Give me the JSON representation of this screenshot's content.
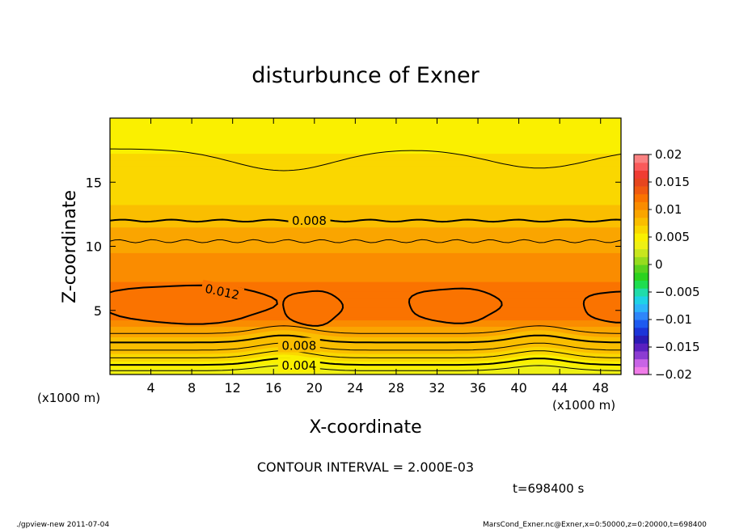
{
  "chart_data": {
    "type": "heatmap",
    "title": "disturbunce of Exner",
    "xlabel": "X-coordinate",
    "ylabel": "Z-coordinate",
    "x_unit_left": "(x1000 m)",
    "x_unit_right": "(x1000 m)",
    "xlim": [
      0,
      50
    ],
    "ylim": [
      0,
      20
    ],
    "x_ticks": [
      4,
      8,
      12,
      16,
      20,
      24,
      28,
      32,
      36,
      40,
      44,
      48
    ],
    "x_tick_labels": [
      "4",
      "8",
      "12",
      "16",
      "20",
      "24",
      "28",
      "32",
      "36",
      "40",
      "44",
      "48"
    ],
    "y_ticks": [
      5,
      10,
      15
    ],
    "y_tick_labels": [
      "5",
      "10",
      "15"
    ],
    "colorbar": {
      "range": [
        -0.02,
        0.02
      ],
      "tick_values": [
        0.02,
        0.015,
        0.01,
        0.005,
        0,
        -0.005,
        -0.01,
        -0.015,
        -0.02
      ],
      "tick_labels": [
        "0.02",
        "0.015",
        "0.01",
        "0.005",
        "0",
        "−0.005",
        "−0.01",
        "−0.015",
        "−0.02"
      ],
      "colors": [
        "#f07ce8",
        "#c864e6",
        "#8c3cd2",
        "#5a20c0",
        "#2a1ab4",
        "#1c34d8",
        "#1e5af0",
        "#2f86fa",
        "#2cb4fa",
        "#1ed2e6",
        "#20dcaa",
        "#1ede50",
        "#2cd21e",
        "#5ad21e",
        "#96dc1e",
        "#c8e61e",
        "#eef014",
        "#faf000",
        "#fad700",
        "#fabe00",
        "#faa500",
        "#fa8c00",
        "#fa7300",
        "#f05a10",
        "#e6461e",
        "#f03c32",
        "#fa5a5a",
        "#fa8282"
      ]
    },
    "annotations": {
      "contour_interval": "CONTOUR INTERVAL = 2.000E-03",
      "time": "t=698400 s",
      "footer_left": "./gpview-new   2011-07-04",
      "footer_right": "MarsCond_Exner.nc@Exner,x=0:50000,z=0:20000,t=698400"
    },
    "contour_labels": [
      "0.008",
      "0.012",
      "0.008",
      "0.004"
    ],
    "value_profile_by_z": {
      "z": [
        0,
        0.4,
        1.0,
        1.6,
        2.2,
        2.8,
        3.4,
        4.4,
        5.5,
        6.7,
        8.0,
        9.2,
        10.5,
        11.5,
        12.3,
        13.5,
        15.0,
        16.5,
        18.0,
        20.0
      ],
      "value": [
        0.0035,
        0.004,
        0.005,
        0.006,
        0.0075,
        0.0085,
        0.0095,
        0.0115,
        0.0125,
        0.0118,
        0.011,
        0.0103,
        0.0093,
        0.0085,
        0.0078,
        0.0069,
        0.0063,
        0.0059,
        0.0055,
        0.005
      ]
    }
  }
}
